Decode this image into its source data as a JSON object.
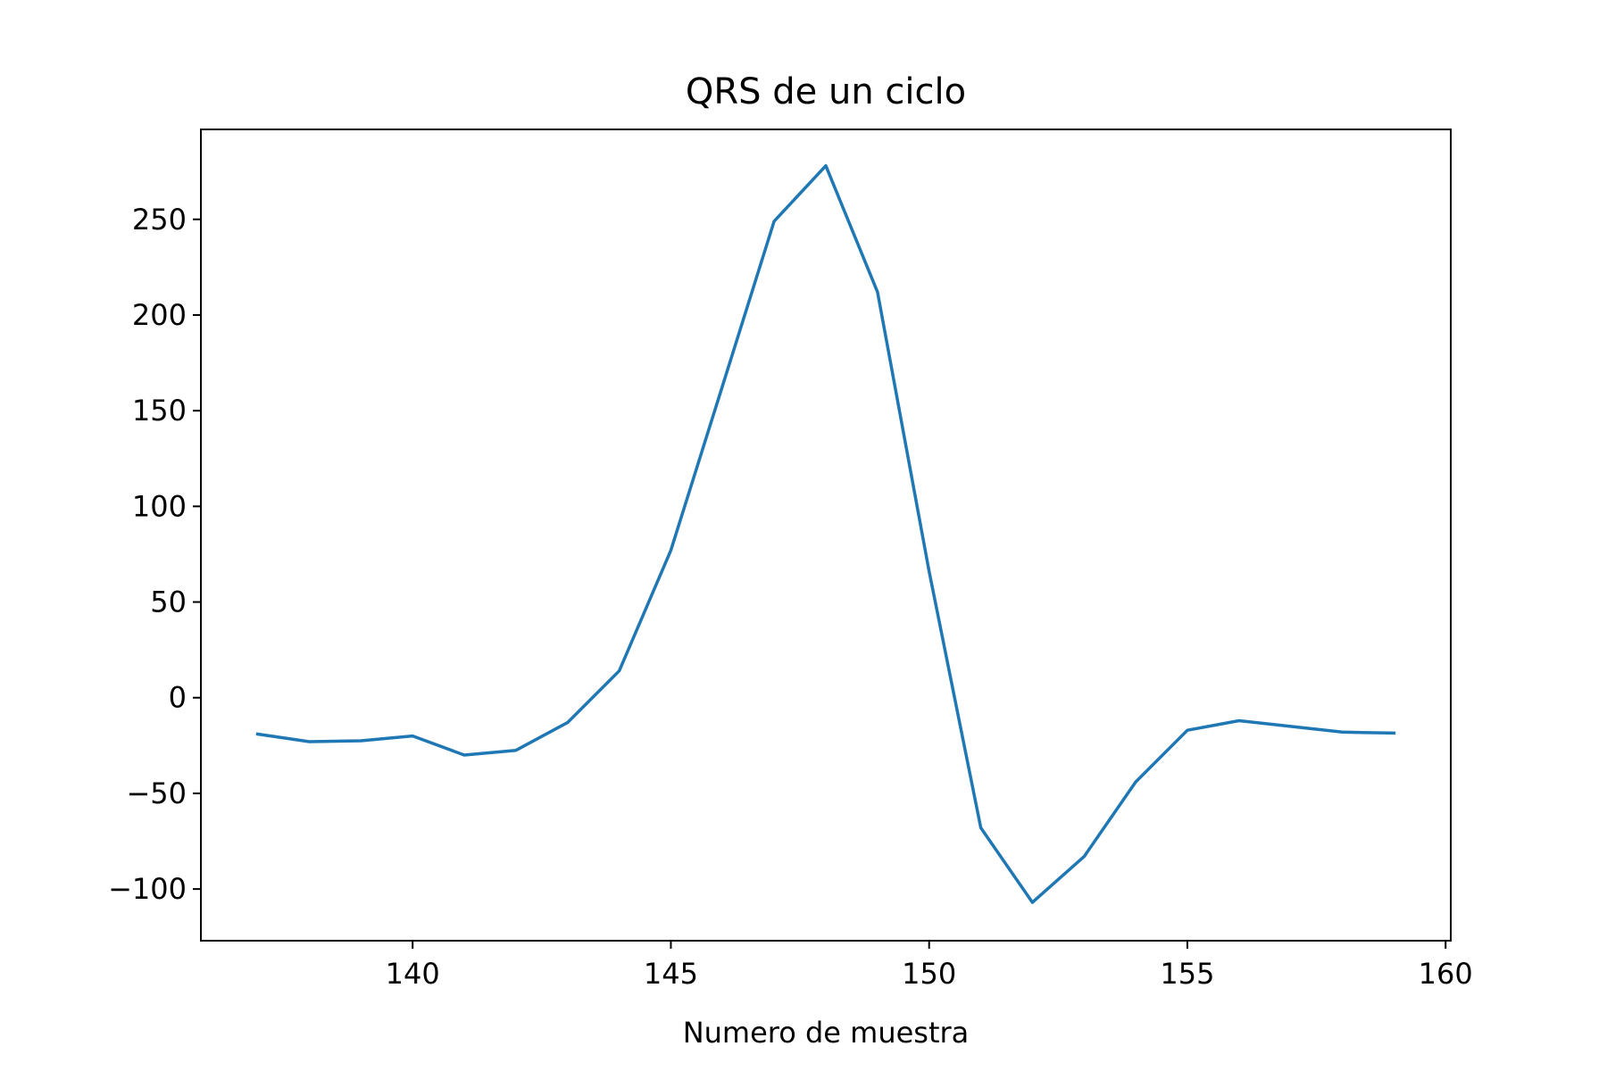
{
  "chart_data": {
    "type": "line",
    "title": "QRS de un ciclo",
    "xlabel": "Numero de muestra",
    "ylabel": "",
    "xlim": [
      135.9,
      160.1
    ],
    "ylim": [
      -127,
      297
    ],
    "x_ticks": [
      140,
      145,
      150,
      155,
      160
    ],
    "x_tick_labels": [
      "140",
      "145",
      "150",
      "155",
      "160"
    ],
    "y_ticks": [
      -100,
      -50,
      0,
      50,
      100,
      150,
      200,
      250
    ],
    "y_tick_labels": [
      "−100",
      "−50",
      "0",
      "50",
      "100",
      "150",
      "200",
      "250"
    ],
    "grid": false,
    "legend": "none",
    "series": [
      {
        "color": "#1f77b4",
        "x": [
          137,
          138,
          139,
          140,
          141,
          142,
          143,
          144,
          145,
          146,
          147,
          148,
          149,
          150,
          151,
          152,
          153,
          154,
          155,
          156,
          157,
          158,
          159
        ],
        "y": [
          -19,
          -23,
          -22.5,
          -20,
          -30,
          -27.5,
          -13,
          14,
          77,
          163,
          249,
          278,
          212,
          66,
          -68,
          -107,
          -83,
          -44,
          -17,
          -12,
          -15,
          -18,
          -18.5
        ]
      }
    ]
  }
}
